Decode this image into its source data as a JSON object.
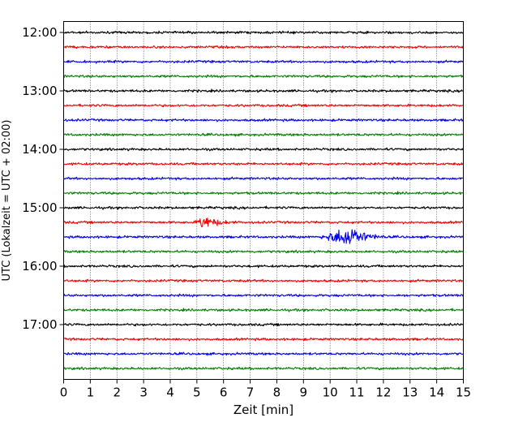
{
  "chart_data": {
    "type": "line",
    "subtype": "helicorder-seismogram",
    "title": "",
    "xlabel": "Zeit  [min]",
    "ylabel": "UTC (Lokalzeit = UTC + 02:00)",
    "x_ticks": [
      "0",
      "1",
      "2",
      "3",
      "4",
      "5",
      "6",
      "7",
      "8",
      "9",
      "10",
      "11",
      "12",
      "13",
      "14",
      "15"
    ],
    "xlim": [
      0,
      15
    ],
    "y_ticks": [
      "12:00",
      "13:00",
      "14:00",
      "15:00",
      "16:00",
      "17:00"
    ],
    "trace_interval_min": 15,
    "first_trace_time": "12:00",
    "trace_count": 24,
    "color_cycle": [
      "#000000",
      "#ff0000",
      "#0000ff",
      "#008000"
    ],
    "vertical_grid": "dotted",
    "horizontal_grid": false,
    "events": [
      {
        "trace_time": "15:15",
        "start_min": 4.95,
        "peak_min": 5.2,
        "end_min": 6.5,
        "relative_amplitude": 1.0
      },
      {
        "trace_time": "15:30",
        "start_min": 9.6,
        "peak_min": 10.8,
        "end_min": 12.1,
        "relative_amplitude": 1.5
      }
    ]
  }
}
